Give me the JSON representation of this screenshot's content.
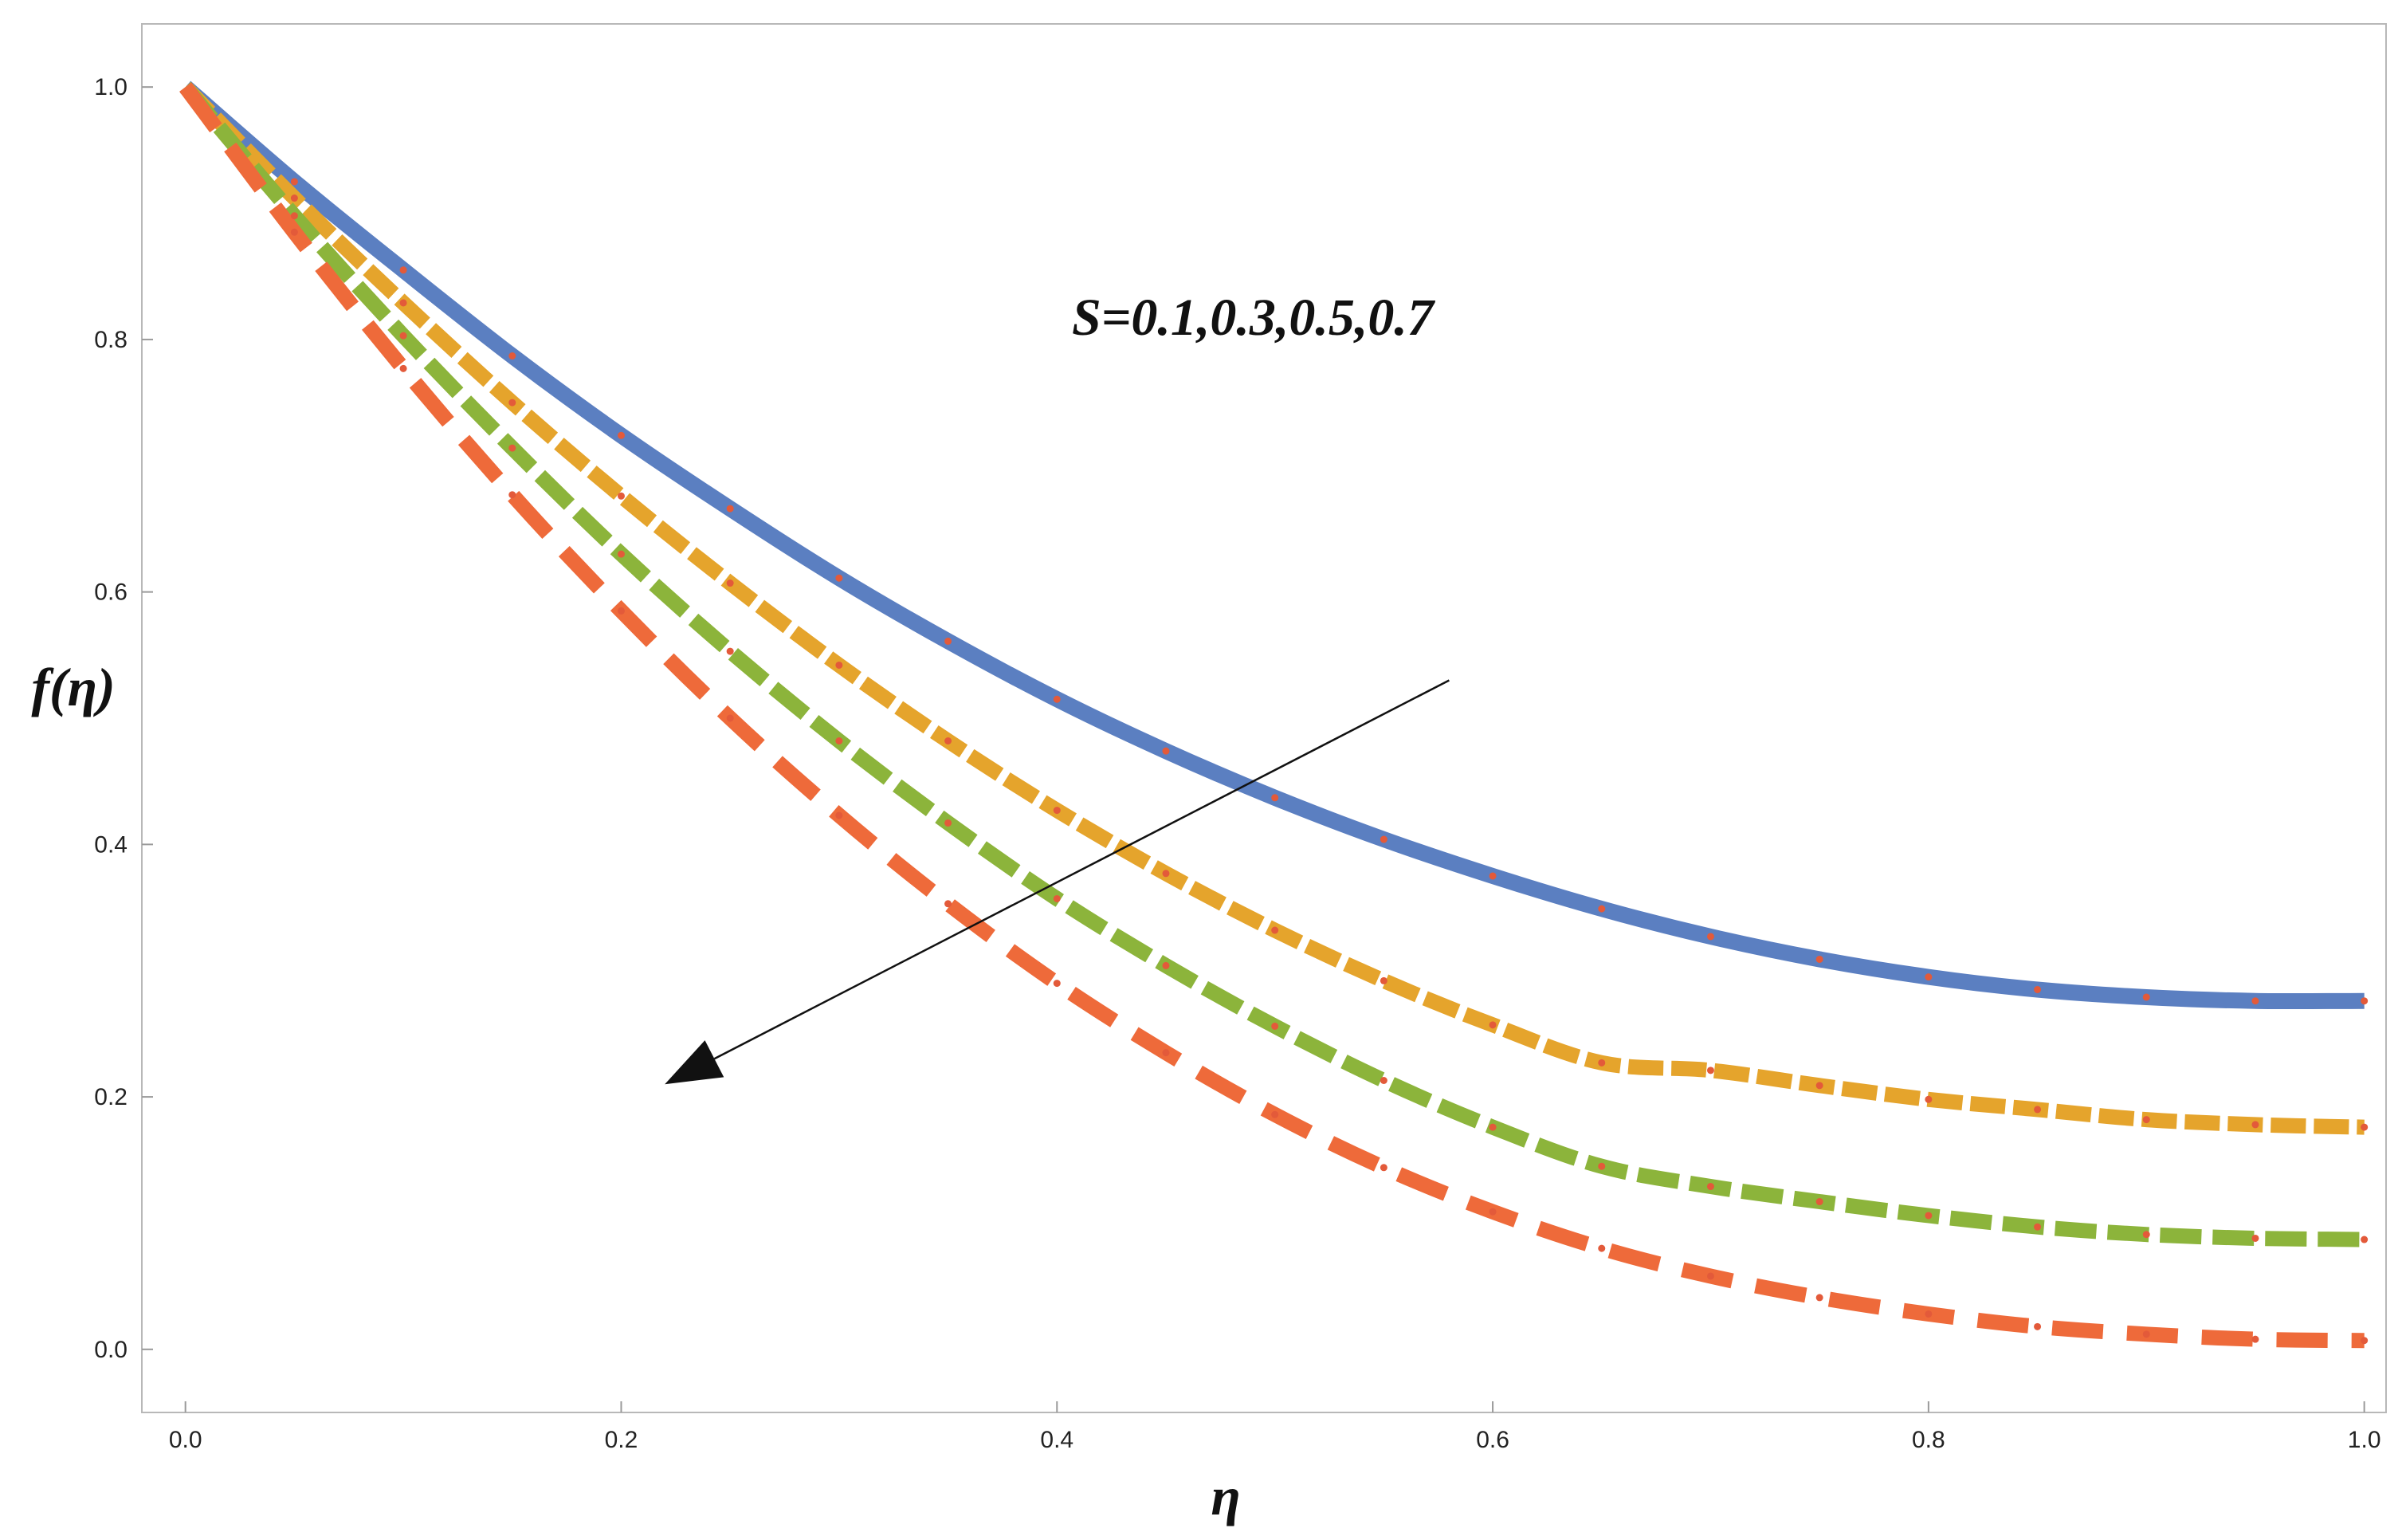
{
  "chart_data": {
    "type": "line",
    "title": "",
    "xlabel": "η",
    "ylabel": "f(η)",
    "xlim": [
      -0.02,
      1.01
    ],
    "ylim": [
      -0.05,
      1.05
    ],
    "x_ticks": [
      "0.0",
      "0.2",
      "0.4",
      "0.6",
      "0.8",
      "1.0"
    ],
    "y_ticks": [
      "0.0",
      "0.2",
      "0.4",
      "0.6",
      "0.8",
      "1.0"
    ],
    "x_tick_values": [
      0.0,
      0.2,
      0.4,
      0.6,
      0.8,
      1.0
    ],
    "y_tick_values": [
      0.0,
      0.2,
      0.4,
      0.6,
      0.8,
      1.0
    ],
    "grid": false,
    "annotation": "S=0.1,0.3,0.5,0.7",
    "arrow": {
      "from": [
        0.58,
        0.53
      ],
      "to": [
        0.22,
        0.21
      ]
    },
    "x": [
      0.0,
      0.05,
      0.1,
      0.15,
      0.2,
      0.25,
      0.3,
      0.35,
      0.4,
      0.45,
      0.5,
      0.55,
      0.6,
      0.65,
      0.7,
      0.75,
      0.8,
      0.85,
      0.9,
      0.95,
      1.0
    ],
    "series": [
      {
        "color": "#5b7fc1",
        "style": "solid",
        "values": [
          1.0,
          0.925,
          0.855,
          0.787,
          0.724,
          0.666,
          0.611,
          0.561,
          0.515,
          0.474,
          0.437,
          0.404,
          0.375,
          0.349,
          0.327,
          0.309,
          0.295,
          0.285,
          0.279,
          0.276,
          0.276
        ]
      },
      {
        "color": "#e5a42c",
        "style": "dash-short",
        "values": [
          1.0,
          0.912,
          0.829,
          0.75,
          0.676,
          0.607,
          0.542,
          0.482,
          0.427,
          0.377,
          0.332,
          0.292,
          0.257,
          0.227,
          0.221,
          0.209,
          0.198,
          0.19,
          0.182,
          0.178,
          0.176
        ]
      },
      {
        "color": "#8cb43b",
        "style": "dash-medium",
        "values": [
          1.0,
          0.898,
          0.803,
          0.714,
          0.63,
          0.553,
          0.482,
          0.417,
          0.357,
          0.304,
          0.256,
          0.213,
          0.176,
          0.145,
          0.129,
          0.117,
          0.106,
          0.097,
          0.091,
          0.088,
          0.087
        ]
      },
      {
        "color": "#ee6a3a",
        "style": "dash-long",
        "values": [
          1.0,
          0.885,
          0.777,
          0.677,
          0.585,
          0.5,
          0.423,
          0.353,
          0.29,
          0.235,
          0.186,
          0.144,
          0.109,
          0.08,
          0.058,
          0.041,
          0.028,
          0.018,
          0.012,
          0.008,
          0.007
        ]
      }
    ]
  }
}
